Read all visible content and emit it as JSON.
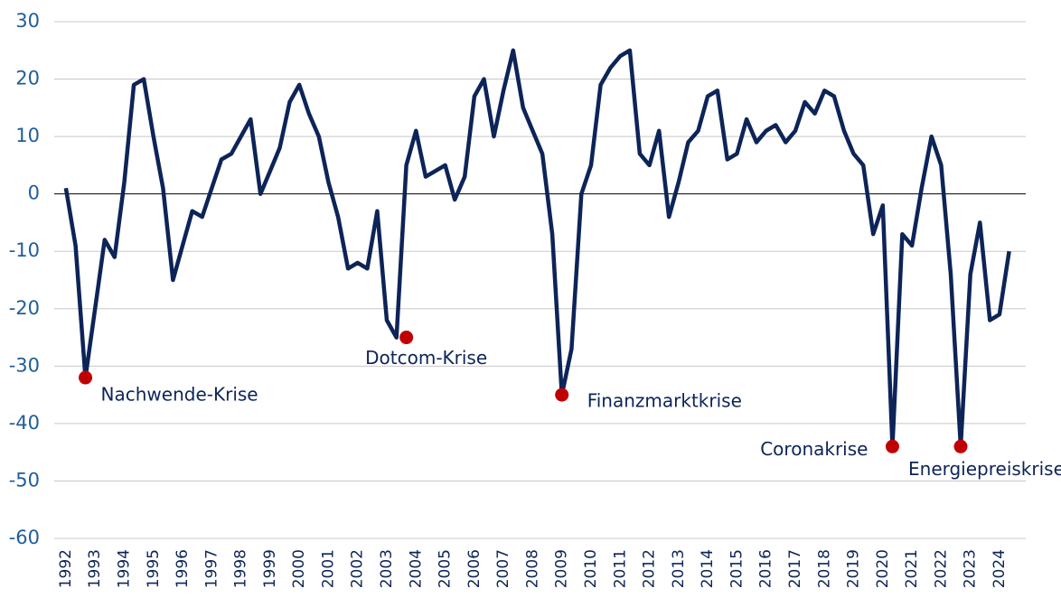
{
  "chart_data": {
    "type": "line",
    "x": [
      1992.0,
      1992.33,
      1992.67,
      1993.0,
      1993.33,
      1993.67,
      1994.0,
      1994.33,
      1994.67,
      1995.0,
      1995.33,
      1995.67,
      1996.0,
      1996.33,
      1996.67,
      1997.0,
      1997.33,
      1997.67,
      1998.0,
      1998.33,
      1998.67,
      1999.0,
      1999.33,
      1999.67,
      2000.0,
      2000.33,
      2000.67,
      2001.0,
      2001.33,
      2001.67,
      2002.0,
      2002.33,
      2002.67,
      2003.0,
      2003.33,
      2003.67,
      2004.0,
      2004.33,
      2004.67,
      2005.0,
      2005.33,
      2005.67,
      2006.0,
      2006.33,
      2006.67,
      2007.0,
      2007.33,
      2007.67,
      2008.0,
      2008.33,
      2008.67,
      2009.0,
      2009.33,
      2009.67,
      2010.0,
      2010.33,
      2010.67,
      2011.0,
      2011.33,
      2011.67,
      2012.0,
      2012.33,
      2012.67,
      2013.0,
      2013.33,
      2013.67,
      2014.0,
      2014.33,
      2014.67,
      2015.0,
      2015.33,
      2015.67,
      2016.0,
      2016.33,
      2016.67,
      2017.0,
      2017.33,
      2017.67,
      2018.0,
      2018.33,
      2018.67,
      2019.0,
      2019.33,
      2019.67,
      2020.0,
      2020.33,
      2020.67,
      2021.0,
      2021.33,
      2021.67,
      2022.0,
      2022.33,
      2022.67,
      2023.0,
      2023.33,
      2023.67,
      2024.0,
      2024.33
    ],
    "series": [
      {
        "color": "#0d2458",
        "values": [
          1,
          -9,
          -32,
          -20,
          -8,
          -11,
          2,
          19,
          20,
          10,
          1,
          -15,
          -9,
          -3,
          -4,
          1,
          6,
          7,
          10,
          13,
          0,
          4,
          8,
          16,
          19,
          14,
          10,
          2,
          -4,
          -13,
          -12,
          -13,
          -3,
          -22,
          -25,
          5,
          11,
          3,
          4,
          5,
          -1,
          3,
          17,
          20,
          10,
          18,
          25,
          15,
          11,
          7,
          -7,
          -35,
          -27,
          0,
          5,
          19,
          22,
          24,
          25,
          7,
          5,
          11,
          -4,
          2,
          9,
          11,
          17,
          18,
          6,
          7,
          13,
          9,
          11,
          12,
          9,
          11,
          16,
          14,
          18,
          17,
          11,
          7,
          5,
          -7,
          -2,
          -44,
          -7,
          -9,
          1,
          10,
          5,
          -14,
          -44,
          -14,
          -5,
          -22,
          -21,
          -10
        ]
      }
    ],
    "annotations": [
      {
        "text": "Nachwende-Krise",
        "x": 1992.67,
        "y": -32
      },
      {
        "text": "Dotcom-Krise",
        "x": 2003.67,
        "y": -25
      },
      {
        "text": "Finanzmarktkrise",
        "x": 2009.0,
        "y": -35
      },
      {
        "text": "Coronakrise",
        "x": 2020.33,
        "y": -44
      },
      {
        "text": "Energiepreiskrise",
        "x": 2022.67,
        "y": -44
      }
    ],
    "marker_color": "#c00000",
    "xlim": [
      1991.6,
      2024.9
    ],
    "xticks": [
      1992,
      1993,
      1994,
      1995,
      1996,
      1997,
      1998,
      1999,
      2000,
      2001,
      2002,
      2003,
      2004,
      2005,
      2006,
      2007,
      2008,
      2009,
      2010,
      2011,
      2012,
      2013,
      2014,
      2015,
      2016,
      2017,
      2018,
      2019,
      2020,
      2021,
      2022,
      2023,
      2024
    ],
    "ylim": [
      -60,
      30
    ],
    "yticks": [
      -60,
      -50,
      -40,
      -30,
      -20,
      -10,
      0,
      10,
      20,
      30
    ],
    "grid": true
  }
}
